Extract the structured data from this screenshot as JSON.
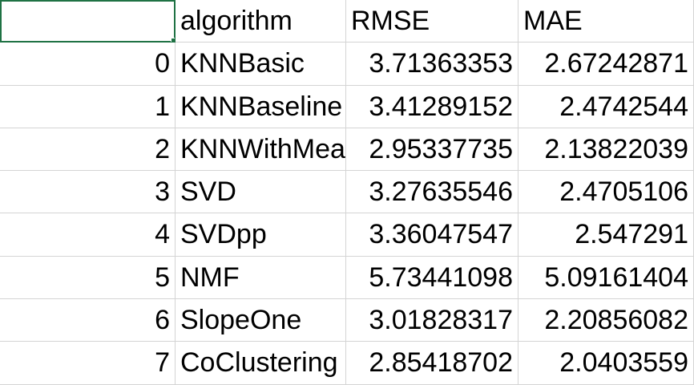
{
  "header": {
    "index": "",
    "algorithm": "algorithm",
    "rmse": "RMSE",
    "mae": "MAE"
  },
  "rows": [
    {
      "index": "0",
      "algorithm": "KNNBasic",
      "rmse": "3.71363353",
      "mae": "2.67242871"
    },
    {
      "index": "1",
      "algorithm": "KNNBaseline",
      "rmse": "3.41289152",
      "mae": "2.4742544"
    },
    {
      "index": "2",
      "algorithm": "KNNWithMeans",
      "rmse": "2.95337735",
      "mae": "2.13822039"
    },
    {
      "index": "3",
      "algorithm": "SVD",
      "rmse": "3.27635546",
      "mae": "2.4705106"
    },
    {
      "index": "4",
      "algorithm": "SVDpp",
      "rmse": "3.36047547",
      "mae": "2.547291"
    },
    {
      "index": "5",
      "algorithm": "NMF",
      "rmse": "5.73441098",
      "mae": "5.09161404"
    },
    {
      "index": "6",
      "algorithm": "SlopeOne",
      "rmse": "3.01828317",
      "mae": "2.20856082"
    },
    {
      "index": "7",
      "algorithm": "CoClustering",
      "rmse": "2.85418702",
      "mae": "2.0403559"
    }
  ],
  "colors": {
    "selection": "#1f7244",
    "gridline": "#d4d4d4"
  }
}
